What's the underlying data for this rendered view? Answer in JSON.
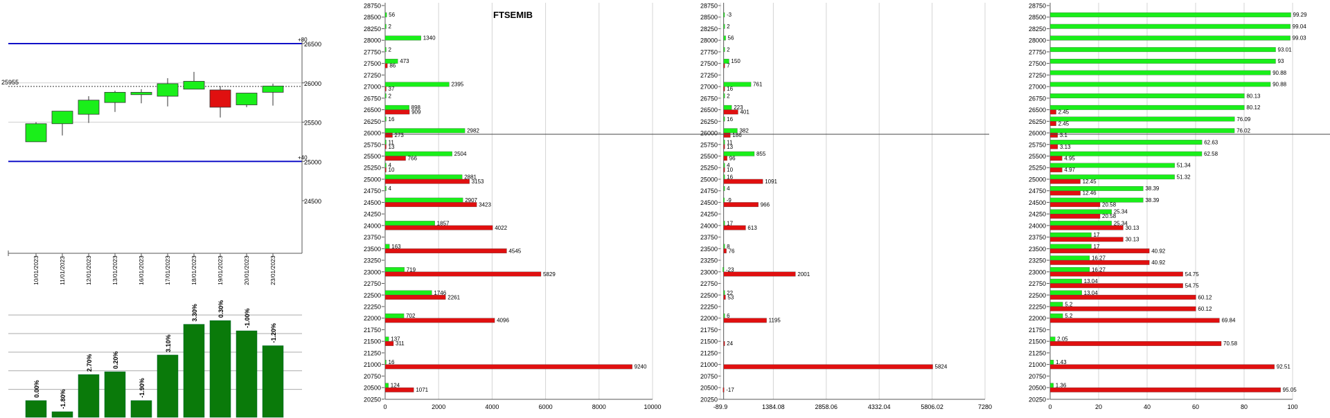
{
  "colors": {
    "green": "#1aef1a",
    "red": "#e01010",
    "dark_green": "#0a7a0a",
    "blue": "#1010c8",
    "grid": "#d4d4d4",
    "axis": "#555555"
  },
  "chart_data": [
    {
      "id": "candles",
      "type": "candlestick",
      "yrange": [
        24500,
        26800
      ],
      "yticks": [
        24500,
        25000,
        25500,
        26000,
        26500
      ],
      "price_line": {
        "value": 25955,
        "label": "25955"
      },
      "bands": [
        {
          "value": 26500,
          "label": "+80"
        },
        {
          "value": 25000,
          "label": "+40"
        }
      ],
      "dates": [
        "10/01/2023",
        "11/01/2023",
        "12/01/2023",
        "13/01/2023",
        "16/01/2023",
        "17/01/2023",
        "18/01/2023",
        "19/01/2023",
        "20/01/2023",
        "23/01/2023"
      ],
      "ohlc": [
        [
          25250,
          25500,
          25250,
          25480
        ],
        [
          25480,
          25640,
          25330,
          25640
        ],
        [
          25600,
          25830,
          25490,
          25780
        ],
        [
          25750,
          25900,
          25630,
          25880
        ],
        [
          25850,
          25920,
          25740,
          25880
        ],
        [
          25830,
          26060,
          25700,
          25990
        ],
        [
          25920,
          26140,
          25920,
          26020
        ],
        [
          25910,
          25960,
          25560,
          25690
        ],
        [
          25720,
          25870,
          25690,
          25870
        ],
        [
          25880,
          25990,
          25710,
          25960
        ]
      ]
    },
    {
      "id": "pct-bars",
      "type": "bar",
      "ylim": [
        0,
        1.12
      ],
      "values": [
        0.18,
        0.06,
        0.46,
        0.49,
        0.18,
        0.67,
        1.0,
        1.04,
        0.93,
        0.77
      ],
      "labels": [
        "0.00%",
        "-1.80%",
        "2.70%",
        "0.20%",
        "-1.90%",
        "3.10%",
        "3.30%",
        "0.30%",
        "-1.00%",
        "-1.20%"
      ]
    },
    {
      "id": "oi-main",
      "type": "bar",
      "title": "FTSEMIB",
      "xlim": [
        0,
        10000
      ],
      "xticks": [
        0,
        2000,
        4000,
        6000,
        8000,
        10000
      ],
      "strikes": [
        28750,
        28500,
        28250,
        28000,
        27750,
        27500,
        27250,
        27000,
        26750,
        26500,
        26250,
        26000,
        25750,
        25500,
        25250,
        25000,
        24750,
        24500,
        24250,
        24000,
        23750,
        23500,
        23250,
        23000,
        22750,
        22500,
        22250,
        22000,
        21750,
        21500,
        21250,
        21000,
        20750,
        20500,
        20250
      ],
      "calls": {
        "28500": 56,
        "28250": 2,
        "28000": 1340,
        "27750": 2,
        "27500": 473,
        "27000": 2395,
        "26750": 2,
        "26500": 898,
        "26250": 16,
        "26000": 2982,
        "25750": 11,
        "25500": 2504,
        "25250": 4,
        "25000": 2881,
        "24750": 4,
        "24500": 2907,
        "24000": 1857,
        "23500": 163,
        "23000": 719,
        "22500": 1746,
        "22000": 702,
        "21500": 137,
        "21000": 16,
        "20500": 124
      },
      "puts": {
        "27500": 86,
        "27000": 37,
        "26500": 909,
        "26000": 273,
        "25750": 13,
        "25500": 766,
        "25250": 10,
        "25000": 3153,
        "24500": 3423,
        "24000": 4022,
        "23500": 4545,
        "23000": 5829,
        "22500": 2261,
        "22000": 4096,
        "21500": 311,
        "21000": 9240,
        "20500": 1071
      }
    },
    {
      "id": "oi-change",
      "type": "bar",
      "xlim": [
        -89.9,
        7280
      ],
      "xticks": [
        -89.9,
        1384.08,
        2858.06,
        4332.04,
        5806.02,
        7280
      ],
      "strikes": [
        28750,
        28500,
        28250,
        28000,
        27750,
        27500,
        27250,
        27000,
        26750,
        26500,
        26250,
        26000,
        25750,
        25500,
        25250,
        25000,
        24750,
        24500,
        24250,
        24000,
        23750,
        23500,
        23250,
        23000,
        22750,
        22500,
        22250,
        22000,
        21750,
        21500,
        21250,
        21000,
        20750,
        20500,
        20250
      ],
      "calls": {
        "28500": -3,
        "28250": 2,
        "28000": 56,
        "27750": 2,
        "27500": 150,
        "27000": 761,
        "26750": 2,
        "26500": 223,
        "26250": 16,
        "26000": 382,
        "25750": 11,
        "25500": 855,
        "25250": 4,
        "25000": 16,
        "24750": 4,
        "24500": -9,
        "24000": 17,
        "23500": 8,
        "23000": -23,
        "22500": 22,
        "22000": 6
      },
      "puts": {
        "27500": 7,
        "27000": 16,
        "26500": 401,
        "26000": 186,
        "25750": 13,
        "25500": 96,
        "25250": 10,
        "25000": 1091,
        "24500": 966,
        "24000": 613,
        "23500": 76,
        "23000": 2001,
        "22500": 53,
        "22000": 1195,
        "21500": 24,
        "21000": 5824,
        "20500": -17
      }
    },
    {
      "id": "oi-pct",
      "type": "bar",
      "xlim": [
        0,
        100
      ],
      "xticks": [
        0,
        20,
        40,
        60,
        80,
        100
      ],
      "strikes": [
        28750,
        28500,
        28250,
        28000,
        27750,
        27500,
        27250,
        27000,
        26750,
        26500,
        26250,
        26000,
        25750,
        25500,
        25250,
        25000,
        24750,
        24500,
        24250,
        24000,
        23750,
        23500,
        23250,
        23000,
        22750,
        22500,
        22250,
        22000,
        21750,
        21500,
        21250,
        21000,
        20750,
        20500,
        20250
      ],
      "calls": {
        "28500": 99.29,
        "28250": 99.04,
        "28000": 99.03,
        "27750": 93.01,
        "27500": 93,
        "27250": 90.88,
        "27000": 90.88,
        "26750": 80.13,
        "26500": 80.12,
        "26250": 76.09,
        "26000": 76.02,
        "25750": 62.63,
        "25500": 62.58,
        "25250": 51.34,
        "25000": 51.32,
        "24750": 38.39,
        "24500": 38.39,
        "24250": 25.34,
        "24000": 25.34,
        "23750": 17,
        "23500": 17,
        "23250": 16.27,
        "23000": 16.27,
        "22750": 13.04,
        "22500": 13.04,
        "22250": 5.2,
        "22000": 5.2,
        "21500": 2.05,
        "21000": 1.43,
        "20500": 1.36
      },
      "puts": {
        "26500": 2.45,
        "26250": 2.45,
        "26000": 3.1,
        "25750": 3.13,
        "25500": 4.95,
        "25250": 4.97,
        "25000": 12.45,
        "24750": 12.46,
        "24500": 20.58,
        "24250": 20.58,
        "24000": 30.13,
        "23750": 30.13,
        "23500": 40.92,
        "23250": 40.92,
        "23000": 54.75,
        "22750": 54.75,
        "22500": 60.12,
        "22250": 60.12,
        "22000": 69.84,
        "21500": 70.58,
        "21000": 92.51,
        "20500": 95.05
      }
    }
  ]
}
